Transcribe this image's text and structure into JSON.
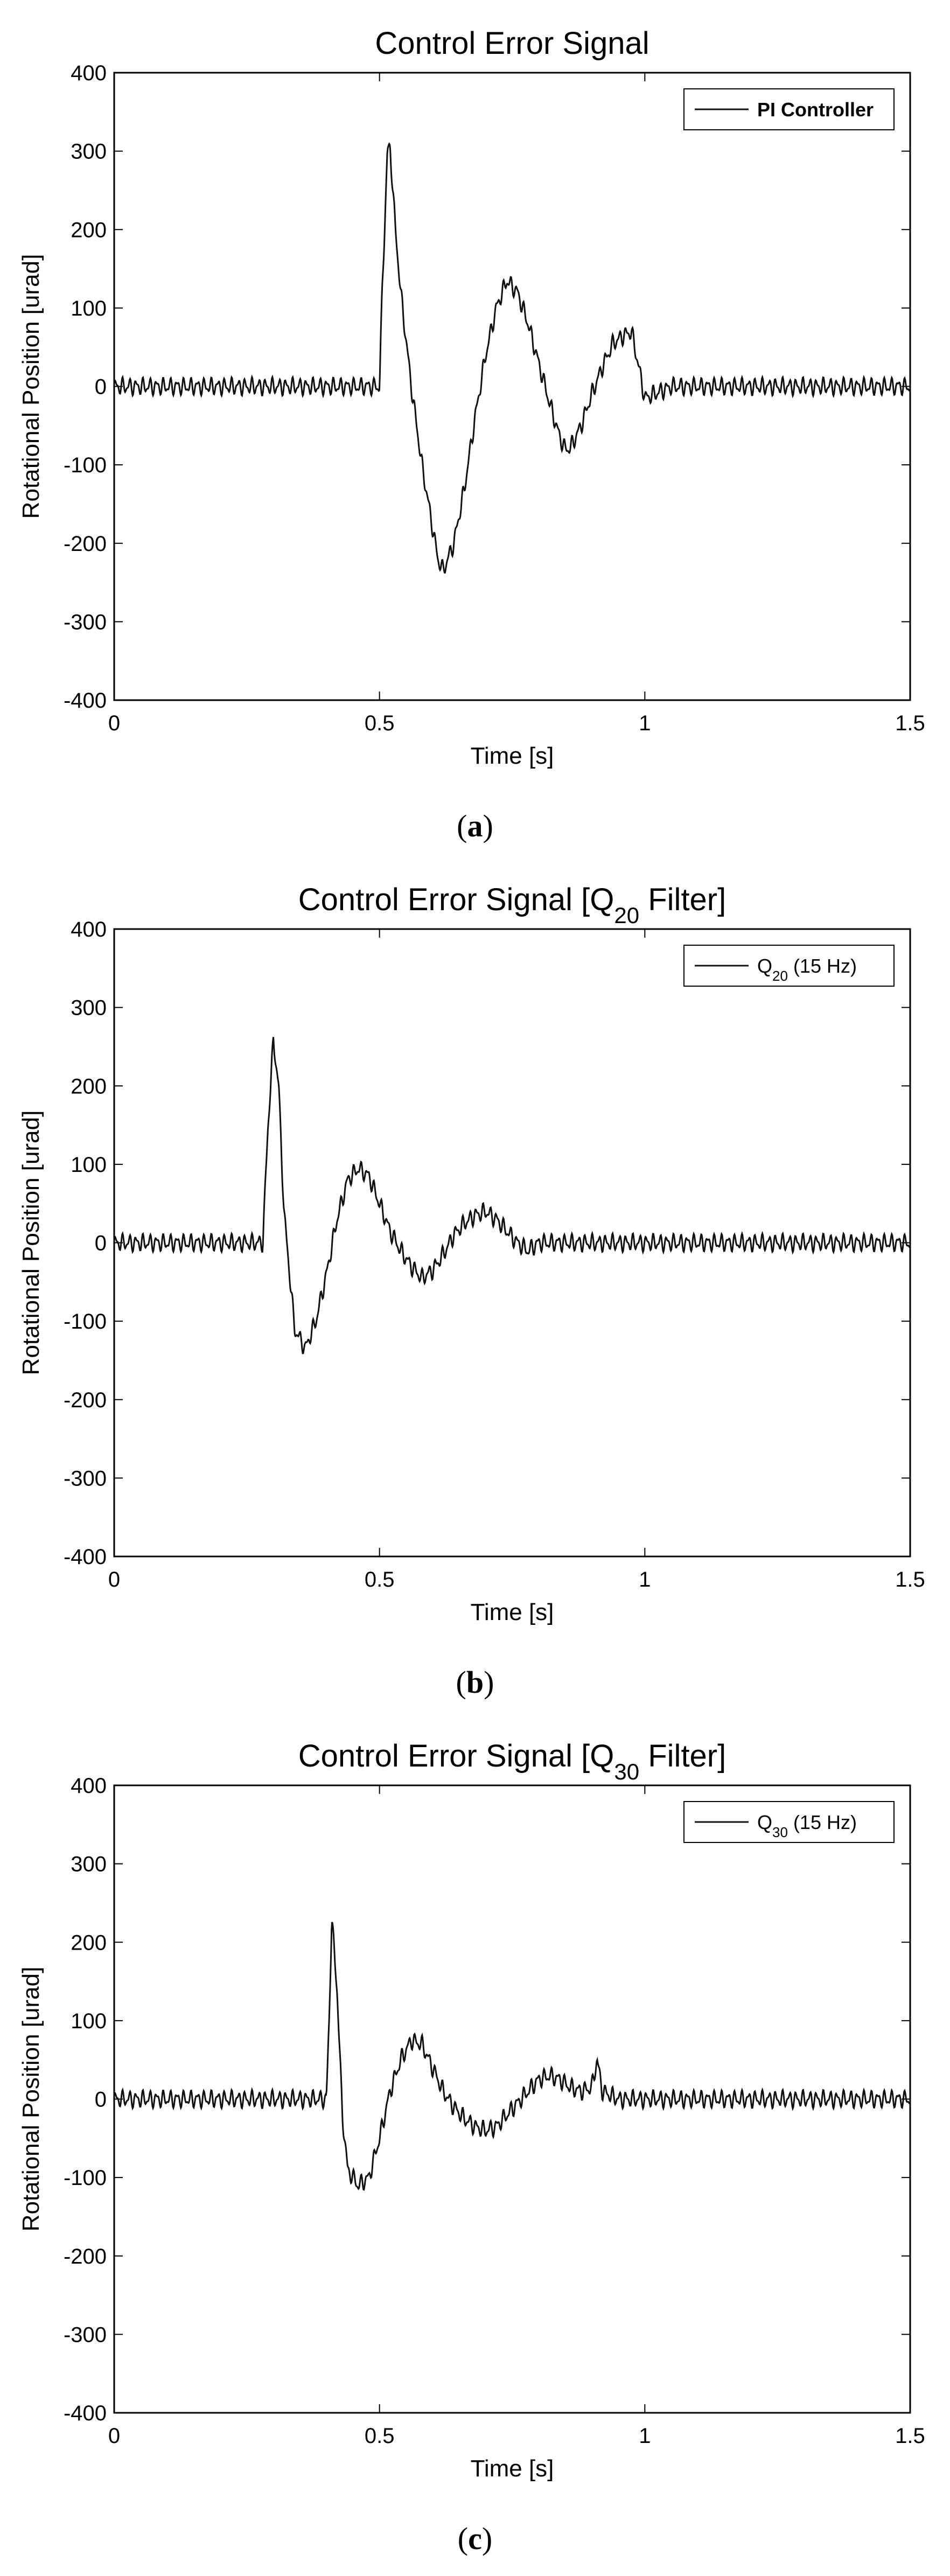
{
  "chart_data": [
    {
      "type": "line",
      "title": "Control Error Signal",
      "xlabel": "Time [s]",
      "ylabel": "Rotational Position [urad]",
      "xlim": [
        0,
        1.5
      ],
      "ylim": [
        -400,
        400
      ],
      "xticks": [
        "0",
        "0.5",
        "1",
        "1.5"
      ],
      "yticks": [
        "400",
        "300",
        "200",
        "100",
        "0",
        "-100",
        "-200",
        "-300",
        "-400"
      ],
      "legend": "top-right",
      "caption_label": "a",
      "series": [
        {
          "name": "PI Controller",
          "x": [
            0,
            0.05,
            0.1,
            0.15,
            0.2,
            0.25,
            0.3,
            0.35,
            0.4,
            0.45,
            0.5,
            0.505,
            0.515,
            0.52,
            0.53,
            0.54,
            0.55,
            0.56,
            0.58,
            0.6,
            0.61,
            0.62,
            0.64,
            0.66,
            0.68,
            0.7,
            0.72,
            0.74,
            0.76,
            0.78,
            0.8,
            0.82,
            0.84,
            0.85,
            0.86,
            0.88,
            0.9,
            0.92,
            0.94,
            0.96,
            0.975,
            0.99,
            1.0,
            1.05,
            1.1,
            1.15,
            1.2,
            1.25,
            1.3,
            1.35,
            1.4,
            1.45,
            1.5
          ],
          "y": [
            0,
            0,
            0,
            0,
            0,
            0,
            0,
            0,
            0,
            0,
            0,
            120,
            300,
            305,
            200,
            120,
            60,
            0,
            -100,
            -180,
            -220,
            -235,
            -200,
            -130,
            -40,
            40,
            100,
            135,
            120,
            80,
            30,
            -20,
            -65,
            -80,
            -78,
            -50,
            -10,
            25,
            55,
            65,
            70,
            20,
            -15,
            0,
            0,
            0,
            0,
            0,
            0,
            0,
            0,
            0,
            0
          ],
          "noise_amplitude": 12
        }
      ]
    },
    {
      "type": "line",
      "title": "Control Error Signal [Q20 Filter]",
      "xlabel": "Time [s]",
      "ylabel": "Rotational Position [urad]",
      "xlim": [
        0,
        1.5
      ],
      "ylim": [
        -400,
        400
      ],
      "xticks": [
        "0",
        "0.5",
        "1",
        "1.5"
      ],
      "yticks": [
        "400",
        "300",
        "200",
        "100",
        "0",
        "-100",
        "-200",
        "-300",
        "-400"
      ],
      "legend": "top-right",
      "caption_label": "b",
      "series": [
        {
          "name": "Q20 (15 Hz)",
          "x": [
            0,
            0.05,
            0.1,
            0.15,
            0.2,
            0.25,
            0.28,
            0.29,
            0.3,
            0.31,
            0.32,
            0.34,
            0.36,
            0.38,
            0.4,
            0.42,
            0.44,
            0.46,
            0.48,
            0.5,
            0.52,
            0.54,
            0.56,
            0.58,
            0.6,
            0.62,
            0.64,
            0.66,
            0.68,
            0.7,
            0.72,
            0.74,
            0.76,
            0.78,
            0.8,
            0.85,
            0.9,
            1.0,
            1.1,
            1.2,
            1.3,
            1.4,
            1.5
          ],
          "y": [
            0,
            0,
            0,
            0,
            0,
            0,
            0,
            150,
            258,
            200,
            40,
            -110,
            -135,
            -100,
            -40,
            30,
            80,
            95,
            85,
            50,
            15,
            -10,
            -30,
            -45,
            -35,
            -15,
            10,
            25,
            35,
            40,
            30,
            15,
            0,
            -10,
            0,
            0,
            0,
            0,
            0,
            0,
            0,
            0,
            0
          ],
          "noise_amplitude": 12
        }
      ]
    },
    {
      "type": "line",
      "title": "Control Error Signal [Q30 Filter]",
      "xlabel": "Time [s]",
      "ylabel": "Rotational Position [urad]",
      "xlim": [
        0,
        1.5
      ],
      "ylim": [
        -400,
        400
      ],
      "xticks": [
        "0",
        "0.5",
        "1",
        "1.5"
      ],
      "yticks": [
        "400",
        "300",
        "200",
        "100",
        "0",
        "-100",
        "-200",
        "-300",
        "-400"
      ],
      "legend": "top-right",
      "caption_label": "c",
      "series": [
        {
          "name": "Q30 (15 Hz)",
          "x": [
            0,
            0.05,
            0.1,
            0.15,
            0.2,
            0.25,
            0.3,
            0.35,
            0.4,
            0.405,
            0.41,
            0.42,
            0.43,
            0.44,
            0.46,
            0.48,
            0.5,
            0.52,
            0.54,
            0.56,
            0.58,
            0.6,
            0.62,
            0.64,
            0.66,
            0.68,
            0.7,
            0.72,
            0.74,
            0.76,
            0.78,
            0.8,
            0.82,
            0.84,
            0.86,
            0.88,
            0.9,
            0.91,
            0.92,
            0.95,
            1.0,
            1.1,
            1.2,
            1.3,
            1.4,
            1.5
          ],
          "y": [
            0,
            0,
            0,
            0,
            0,
            0,
            0,
            0,
            0,
            100,
            230,
            140,
            -20,
            -90,
            -110,
            -100,
            -50,
            10,
            50,
            75,
            70,
            40,
            10,
            -10,
            -25,
            -35,
            -40,
            -35,
            -20,
            -5,
            10,
            25,
            30,
            25,
            15,
            10,
            15,
            50,
            10,
            0,
            0,
            0,
            0,
            0,
            0,
            0
          ],
          "noise_amplitude": 12
        }
      ]
    }
  ]
}
